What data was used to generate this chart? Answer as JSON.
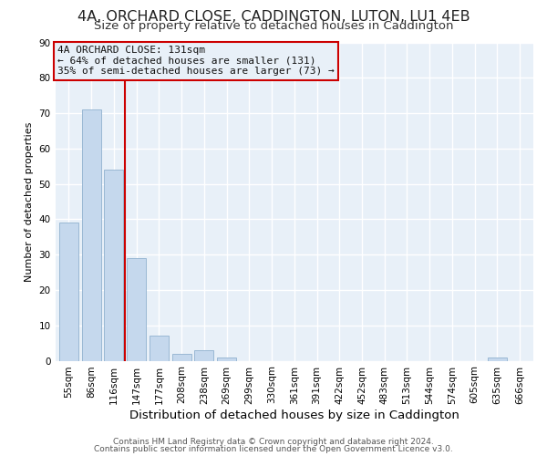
{
  "title": "4A, ORCHARD CLOSE, CADDINGTON, LUTON, LU1 4EB",
  "subtitle": "Size of property relative to detached houses in Caddington",
  "xlabel": "Distribution of detached houses by size in Caddington",
  "ylabel": "Number of detached properties",
  "bar_labels": [
    "55sqm",
    "86sqm",
    "116sqm",
    "147sqm",
    "177sqm",
    "208sqm",
    "238sqm",
    "269sqm",
    "299sqm",
    "330sqm",
    "361sqm",
    "391sqm",
    "422sqm",
    "452sqm",
    "483sqm",
    "513sqm",
    "544sqm",
    "574sqm",
    "605sqm",
    "635sqm",
    "666sqm"
  ],
  "bar_values": [
    39,
    71,
    54,
    29,
    7,
    2,
    3,
    1,
    0,
    0,
    0,
    0,
    0,
    0,
    0,
    0,
    0,
    0,
    0,
    1,
    0
  ],
  "bar_color": "#c5d8ed",
  "bar_edge_color": "#9ab8d4",
  "vline_x": 2.5,
  "vline_color": "#cc0000",
  "annotation_line1": "4A ORCHARD CLOSE: 131sqm",
  "annotation_line2": "← 64% of detached houses are smaller (131)",
  "annotation_line3": "35% of semi-detached houses are larger (73) →",
  "annotation_box_edgecolor": "#cc0000",
  "ylim": [
    0,
    90
  ],
  "yticks": [
    0,
    10,
    20,
    30,
    40,
    50,
    60,
    70,
    80,
    90
  ],
  "footer1": "Contains HM Land Registry data © Crown copyright and database right 2024.",
  "footer2": "Contains public sector information licensed under the Open Government Licence v3.0.",
  "background_color": "#ffffff",
  "plot_bg_color": "#e8f0f8",
  "grid_color": "#ffffff",
  "title_fontsize": 11.5,
  "subtitle_fontsize": 9.5,
  "xlabel_fontsize": 9.5,
  "ylabel_fontsize": 8,
  "tick_fontsize": 7.5,
  "annotation_fontsize": 8,
  "footer_fontsize": 6.5
}
